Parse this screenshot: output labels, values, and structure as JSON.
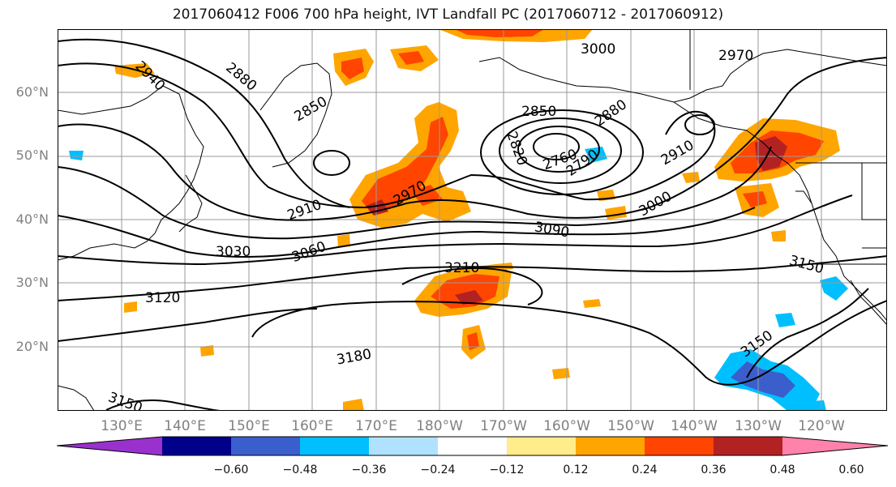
{
  "title": "2017060412 F006 700 hPa height, IVT Landfall PC (2017060712 - 2017060912)",
  "map": {
    "lat_labels": [
      "60°N",
      "50°N",
      "40°N",
      "30°N",
      "20°N"
    ],
    "lon_labels": [
      "130°E",
      "140°E",
      "150°E",
      "160°E",
      "170°E",
      "180°W",
      "170°W",
      "160°W",
      "150°W",
      "140°W",
      "130°W",
      "120°W"
    ],
    "contour_labels": [
      "2940",
      "2880",
      "2850",
      "2850",
      "2820",
      "2760",
      "2790",
      "2880",
      "2910",
      "3000",
      "2970",
      "2910",
      "2970",
      "3000",
      "3030",
      "3060",
      "3090",
      "3120",
      "3150",
      "3150",
      "3180",
      "3210",
      "3150"
    ],
    "gridline_color": "#9a9a9a",
    "contour_color": "#000000"
  },
  "colorbar": {
    "colors": [
      "#9932cc",
      "#00008b",
      "#3a5fcd",
      "#00bfff",
      "#b0e2ff",
      "#ffffff",
      "#ffec8b",
      "#ffa500",
      "#ff4500",
      "#b22222",
      "#ff82ab"
    ],
    "ticks": [
      "−0.60",
      "−0.48",
      "−0.36",
      "−0.24",
      "−0.12",
      "0.12",
      "0.24",
      "0.36",
      "0.48",
      "0.60"
    ]
  }
}
